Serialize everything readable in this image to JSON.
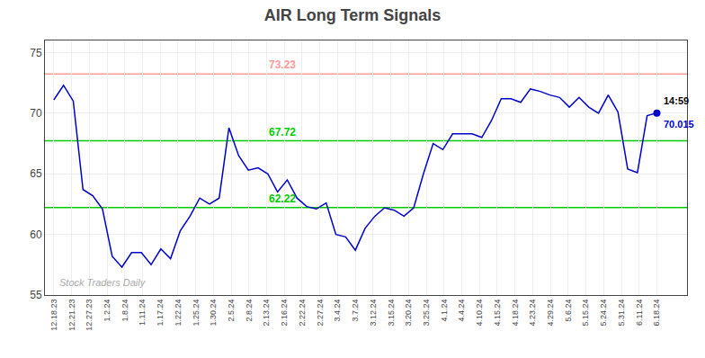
{
  "chart_data": {
    "type": "line",
    "title": "AIR Long Term Signals",
    "x": [
      0,
      0.5484,
      1.0968,
      1.6452,
      2.1935,
      2.7419,
      3.2903,
      3.8387,
      4.3871,
      4.9355,
      5.4839,
      6.0323,
      6.5806,
      7.129,
      7.6774,
      8.2258,
      8.7742,
      9.3226,
      9.871,
      10.4194,
      10.9677,
      11.5161,
      12.0645,
      12.6129,
      13.1613,
      13.7097,
      14.2581,
      14.8065,
      15.3548,
      15.9032,
      16.4516,
      17,
      17.5484,
      18.0968,
      18.6452,
      19.1935,
      19.7419,
      20.2903,
      20.8387,
      21.3871,
      21.9355,
      22.4839,
      23.0323,
      23.5806,
      24.129,
      24.6774,
      25.2258,
      25.7742,
      26.3226,
      26.871,
      27.4194,
      27.9677,
      28.5161,
      29.0645,
      29.6129,
      30.1613,
      30.7097,
      31.2581,
      31.8065,
      32.3548,
      32.9032,
      33.4516,
      34
    ],
    "values": [
      71.1,
      72.3,
      71.0,
      63.7,
      63.2,
      62.1,
      58.2,
      57.3,
      58.5,
      58.5,
      57.5,
      58.8,
      58.0,
      60.3,
      61.5,
      63.0,
      62.5,
      63.0,
      68.8,
      66.5,
      65.3,
      65.5,
      65.0,
      63.5,
      64.5,
      63.0,
      62.3,
      62.1,
      62.6,
      60.0,
      59.8,
      58.7,
      60.5,
      61.5,
      62.2,
      62.0,
      61.5,
      62.2,
      65.0,
      67.5,
      67.0,
      68.3,
      68.3,
      68.3,
      68.0,
      69.4,
      71.2,
      71.2,
      70.9,
      72.0,
      71.8,
      71.5,
      71.3,
      70.5,
      71.3,
      70.5,
      70.0,
      71.5,
      70.1,
      65.4,
      65.1,
      69.8,
      70.015
    ],
    "color": "#0000cc",
    "xlim": [
      -0.5,
      35.7
    ],
    "xticks": [
      {
        "value": 0,
        "label": "12.18.23"
      },
      {
        "value": 1,
        "label": "12.21.23"
      },
      {
        "value": 2,
        "label": "12.27.23"
      },
      {
        "value": 3,
        "label": "1.2.24"
      },
      {
        "value": 4,
        "label": "1.8.24"
      },
      {
        "value": 5,
        "label": "1.11.24"
      },
      {
        "value": 6,
        "label": "1.17.24"
      },
      {
        "value": 7,
        "label": "1.22.24"
      },
      {
        "value": 8,
        "label": "1.25.24"
      },
      {
        "value": 9,
        "label": "1.30.24"
      },
      {
        "value": 10,
        "label": "2.5.24"
      },
      {
        "value": 11,
        "label": "2.8.24"
      },
      {
        "value": 12,
        "label": "2.13.24"
      },
      {
        "value": 13,
        "label": "2.16.24"
      },
      {
        "value": 14,
        "label": "2.22.24"
      },
      {
        "value": 15,
        "label": "2.27.24"
      },
      {
        "value": 16,
        "label": "3.4.24"
      },
      {
        "value": 17,
        "label": "3.7.24"
      },
      {
        "value": 18,
        "label": "3.12.24"
      },
      {
        "value": 19,
        "label": "3.15.24"
      },
      {
        "value": 20,
        "label": "3.20.24"
      },
      {
        "value": 21,
        "label": "3.25.24"
      },
      {
        "value": 22,
        "label": "4.1.24"
      },
      {
        "value": 23,
        "label": "4.4.24"
      },
      {
        "value": 24,
        "label": "4.10.24"
      },
      {
        "value": 25,
        "label": "4.15.24"
      },
      {
        "value": 26,
        "label": "4.18.24"
      },
      {
        "value": 27,
        "label": "4.23.24"
      },
      {
        "value": 28,
        "label": "4.29.24"
      },
      {
        "value": 29,
        "label": "5.6.24"
      },
      {
        "value": 30,
        "label": "5.15.24"
      },
      {
        "value": 31,
        "label": "5.24.24"
      },
      {
        "value": 32,
        "label": "5.31.24"
      },
      {
        "value": 33,
        "label": "6.11.24"
      },
      {
        "value": 34,
        "label": "6.18.24"
      }
    ],
    "ylim": [
      55,
      76
    ],
    "yticks": [
      55,
      60,
      65,
      70,
      75
    ],
    "grid": true,
    "hlines": [
      {
        "value": 73.23,
        "label": "73.23",
        "color": "#ff9999"
      },
      {
        "value": 67.72,
        "label": "67.72",
        "color": "#00cc00"
      },
      {
        "value": 62.22,
        "label": "62.22",
        "color": "#00cc00"
      }
    ],
    "last_point": {
      "x": 34,
      "y": 70.015,
      "time_label": "14:59",
      "value_label": "70.015",
      "color": "#0000cc",
      "marker": "circle"
    },
    "watermark": "Stock Traders Daily"
  }
}
